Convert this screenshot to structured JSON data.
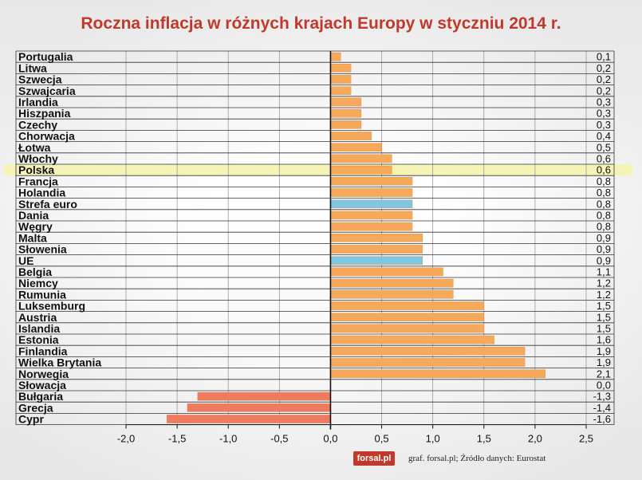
{
  "title": "Roczna inflacja w różnych krajach Europy w styczniu 2014 r.",
  "credit": {
    "logo": "forsal.pl",
    "text": "graf. forsal.pl; Źródło danych: Eurostat"
  },
  "colors": {
    "country": "#f7a95a",
    "aggregate": "#7fc6df",
    "negative": "#f07a5f",
    "highlight": "#f5f3b6",
    "title": "#c0392b"
  },
  "chart_data": {
    "type": "bar",
    "orientation": "horizontal",
    "title": "Roczna inflacja w różnych krajach Europy w styczniu 2014 r.",
    "xlabel": "",
    "ylabel": "",
    "xlim": [
      -2.0,
      2.5
    ],
    "xticks": [
      "-2,0",
      "-1,5",
      "-1,0",
      "-0,5",
      "0,0",
      "0,5",
      "1,0",
      "1,5",
      "2,0",
      "2,5"
    ],
    "xtick_values": [
      -2.0,
      -1.5,
      -1.0,
      -0.5,
      0.0,
      0.5,
      1.0,
      1.5,
      2.0,
      2.5
    ],
    "highlighted": "Polska",
    "categories": [
      "Portugalia",
      "Litwa",
      "Szwecja",
      "Szwajcaria",
      "Irlandia",
      "Hiszpania",
      "Czechy",
      "Chorwacja",
      "Łotwa",
      "Włochy",
      "Polska",
      "Francja",
      "Holandia",
      "Strefa euro",
      "Dania",
      "Węgry",
      "Malta",
      "Słowenia",
      "UE",
      "Belgia",
      "Niemcy",
      "Rumunia",
      "Luksemburg",
      "Austria",
      "Islandia",
      "Estonia",
      "Finlandia",
      "Wielka Brytania",
      "Norwegia",
      "Słowacja",
      "Bułgaria",
      "Grecja",
      "Cypr"
    ],
    "values": [
      0.1,
      0.2,
      0.2,
      0.2,
      0.3,
      0.3,
      0.3,
      0.4,
      0.5,
      0.6,
      0.6,
      0.8,
      0.8,
      0.8,
      0.8,
      0.8,
      0.9,
      0.9,
      0.9,
      1.1,
      1.2,
      1.2,
      1.5,
      1.5,
      1.5,
      1.6,
      1.9,
      1.9,
      2.1,
      0.0,
      -1.3,
      -1.4,
      -1.6
    ],
    "value_labels": [
      "0,1",
      "0,2",
      "0,2",
      "0,2",
      "0,3",
      "0,3",
      "0,3",
      "0,4",
      "0,5",
      "0,6",
      "0,6",
      "0,8",
      "0,8",
      "0,8",
      "0,8",
      "0,8",
      "0,9",
      "0,9",
      "0,9",
      "1,1",
      "1,2",
      "1,2",
      "1,5",
      "1,5",
      "1,5",
      "1,6",
      "1,9",
      "1,9",
      "2,1",
      "0,0",
      "-1,3",
      "-1,4",
      "-1,6"
    ],
    "aggregates": [
      "Strefa euro",
      "UE"
    ],
    "grid": true
  }
}
